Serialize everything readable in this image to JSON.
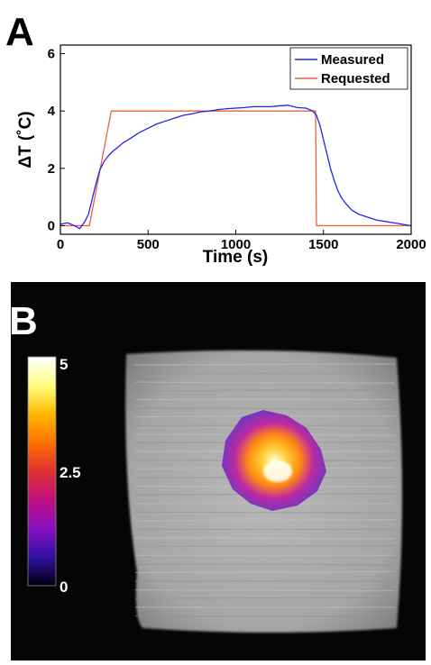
{
  "panels": [
    {
      "letter": "A"
    },
    {
      "letter": "B"
    }
  ],
  "chart_data": [
    {
      "type": "line",
      "title": "",
      "xlabel": "Time (s)",
      "ylabel": "ΔT (˚C)",
      "xlim": [
        0,
        2000
      ],
      "ylim": [
        -0.3,
        6.3
      ],
      "x_ticks": [
        "0",
        "500",
        "1000",
        "1500",
        "2000"
      ],
      "y_ticks": [
        "0",
        "2",
        "4",
        "6"
      ],
      "grid": false,
      "legend_position": "top-right",
      "series": [
        {
          "name": "Measured",
          "color": "#2323ee",
          "x": [
            0,
            40,
            80,
            110,
            140,
            160,
            180,
            200,
            225,
            250,
            275,
            300,
            330,
            360,
            400,
            450,
            500,
            550,
            600,
            650,
            700,
            750,
            800,
            850,
            900,
            950,
            1000,
            1050,
            1100,
            1150,
            1200,
            1250,
            1300,
            1350,
            1400,
            1440,
            1460,
            1480,
            1500,
            1520,
            1540,
            1560,
            1580,
            1600,
            1630,
            1660,
            1700,
            1750,
            1800,
            1850,
            1900,
            1950,
            2000
          ],
          "y": [
            0.05,
            0.1,
            0.0,
            -0.1,
            0.15,
            0.4,
            0.9,
            1.4,
            1.95,
            2.25,
            2.45,
            2.6,
            2.75,
            2.9,
            3.05,
            3.25,
            3.4,
            3.55,
            3.65,
            3.75,
            3.85,
            3.9,
            3.97,
            4.0,
            4.05,
            4.08,
            4.1,
            4.12,
            4.15,
            4.15,
            4.15,
            4.18,
            4.2,
            4.12,
            4.1,
            4.0,
            3.85,
            3.5,
            3.0,
            2.5,
            2.0,
            1.6,
            1.25,
            1.0,
            0.75,
            0.55,
            0.4,
            0.3,
            0.2,
            0.15,
            0.1,
            0.05,
            0.0
          ]
        },
        {
          "name": "Requested",
          "color": "#e8643a",
          "x": [
            0,
            165,
            290,
            1455,
            1460,
            2000
          ],
          "y": [
            0,
            0,
            4,
            4,
            0,
            0
          ]
        }
      ]
    },
    {
      "type": "heatmap",
      "colorbar": {
        "labels": [
          "5",
          "2.5",
          "0"
        ],
        "min": 0,
        "max": 5,
        "colors": [
          "#ffffff",
          "#ffff80",
          "#ffb800",
          "#ff7000",
          "#e03030",
          "#c01080",
          "#8810c0",
          "#3010a0",
          "#000010"
        ]
      }
    }
  ]
}
